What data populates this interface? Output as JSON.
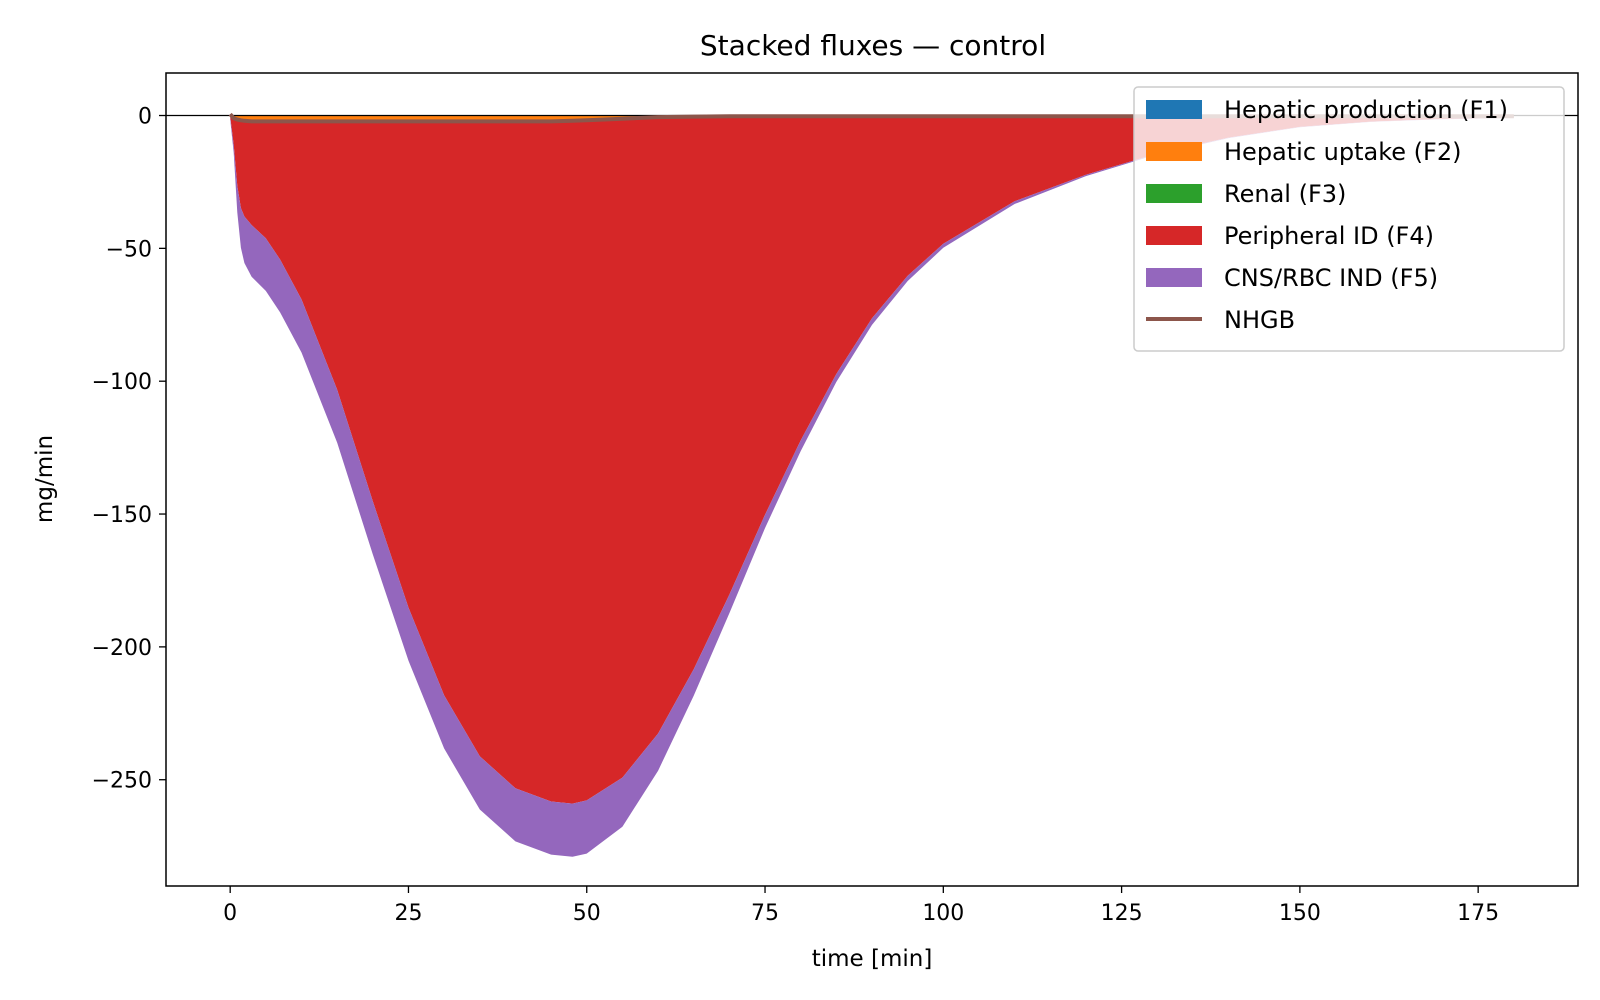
{
  "chart_data": {
    "type": "area",
    "title": "Stacked fluxes — control",
    "xlabel": "time [min]",
    "ylabel": "mg/min",
    "xlim": [
      -9,
      189
    ],
    "ylim": [
      -290,
      16
    ],
    "xticks": [
      0,
      25,
      50,
      75,
      100,
      125,
      150,
      175
    ],
    "yticks": [
      0,
      -50,
      -100,
      -150,
      -200,
      -250
    ],
    "ytick_labels": [
      "0",
      "−50",
      "−100",
      "−150",
      "−200",
      "−250"
    ],
    "xtick_labels": [
      "0",
      "25",
      "50",
      "75",
      "100",
      "125",
      "150",
      "175"
    ],
    "zero_line": true,
    "grid": false,
    "legend_position": "top-right",
    "x": [
      0,
      0.5,
      1,
      1.5,
      2,
      3,
      5,
      7,
      10,
      15,
      20,
      25,
      30,
      35,
      40,
      45,
      48,
      50,
      55,
      60,
      65,
      70,
      75,
      80,
      85,
      90,
      95,
      100,
      110,
      120,
      130,
      140,
      150,
      160,
      170,
      180
    ],
    "series": [
      {
        "name": "Hepatic production (F1)",
        "color": "#1f77b4",
        "values": [
          0.5,
          0,
          0,
          0,
          0,
          0,
          0,
          0,
          0,
          0,
          0,
          0,
          0,
          0,
          0,
          0,
          0,
          0,
          0,
          0,
          0,
          0,
          0,
          0,
          0,
          0,
          0,
          0,
          0,
          0,
          0,
          0,
          0,
          0,
          0,
          0
        ]
      },
      {
        "name": "Hepatic uptake (F2)",
        "color": "#ff7f0e",
        "values": [
          0,
          -1,
          -1.5,
          -1.8,
          -2,
          -2.2,
          -2.2,
          -2.2,
          -2.2,
          -2.2,
          -2.2,
          -2.2,
          -2.2,
          -2.2,
          -2.2,
          -2.2,
          -2,
          -1.8,
          -1.2,
          -0.6,
          -0.4,
          -0.3,
          -0.3,
          -0.3,
          -0.3,
          -0.3,
          -0.3,
          -0.3,
          -0.3,
          -0.3,
          -0.3,
          -0.3,
          -0.3,
          -0.3,
          -0.3,
          -0.3
        ]
      },
      {
        "name": "Renal (F3)",
        "color": "#2ca02c",
        "values": [
          0,
          0,
          0,
          0,
          0,
          0,
          0,
          0,
          0,
          0,
          0,
          0,
          0,
          0,
          0,
          0,
          0,
          0,
          0,
          0,
          0,
          0,
          0,
          0,
          0,
          0,
          0,
          0,
          0,
          0,
          0,
          0,
          0,
          0,
          0,
          0
        ]
      },
      {
        "name": "Peripheral ID (F4)",
        "color": "#d62728",
        "values": [
          -1,
          -10,
          -25,
          -33,
          -36,
          -39,
          -44,
          -52,
          -67,
          -101,
          -143,
          -183,
          -216,
          -239,
          -251,
          -256,
          -257,
          -256,
          -248,
          -232,
          -208,
          -180,
          -150,
          -122,
          -97,
          -76,
          -60,
          -48,
          -32,
          -22,
          -14,
          -8,
          -4,
          -2,
          -1,
          -0.5
        ]
      },
      {
        "name": "CNS/RBC IND (F5)",
        "color": "#9467bd",
        "values": [
          -1,
          -3,
          -10,
          -15,
          -17.5,
          -19.5,
          -19.8,
          -19.9,
          -20,
          -20,
          -20,
          -20,
          -20,
          -20,
          -20,
          -20,
          -20,
          -20,
          -18.5,
          -14,
          -10,
          -7,
          -5,
          -4,
          -3,
          -2.5,
          -2,
          -1.5,
          -1,
          -0.5,
          -0.3,
          -0.2,
          -0.1,
          -0.1,
          -0.1,
          -0.1
        ]
      }
    ],
    "nhgb": {
      "name": "NHGB",
      "color": "#8c564b",
      "values": [
        0.5,
        -1,
        -1.5,
        -1.8,
        -2,
        -2.2,
        -2.2,
        -2.2,
        -2.2,
        -2.2,
        -2.2,
        -2.2,
        -2.2,
        -2.2,
        -2.2,
        -2.2,
        -2,
        -1.8,
        -1.2,
        -0.6,
        -0.4,
        -0.3,
        -0.3,
        -0.3,
        -0.3,
        -0.3,
        -0.3,
        -0.3,
        -0.3,
        -0.3,
        -0.3,
        -0.3,
        -0.3,
        -0.3,
        -0.3,
        -0.3
      ]
    }
  }
}
